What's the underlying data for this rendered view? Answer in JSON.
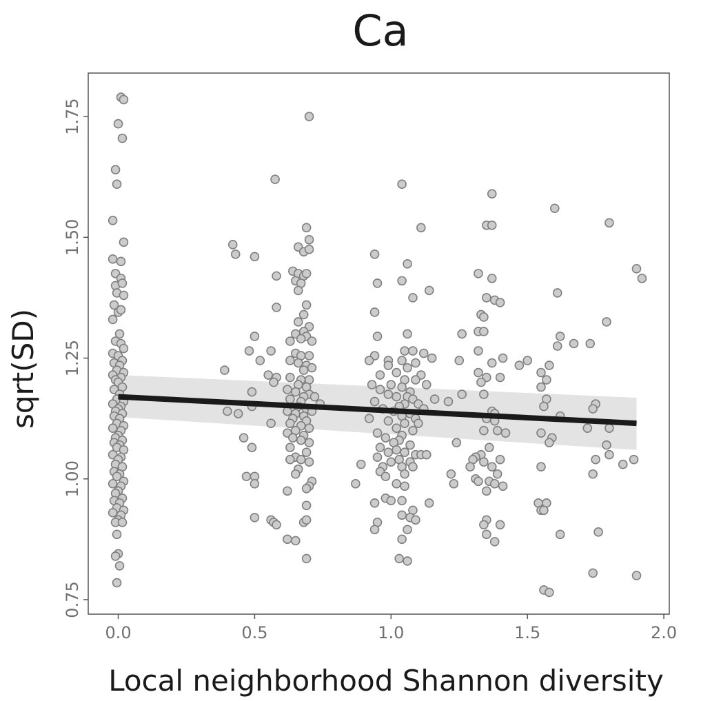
{
  "chart_data": {
    "type": "scatter",
    "title": "Ca",
    "xlabel": "Local neighborhood Shannon diversity",
    "ylabel": "sqrt(SD)",
    "xlim": [
      -0.11,
      2.02
    ],
    "ylim": [
      0.72,
      1.84
    ],
    "x_ticks": [
      0.0,
      0.5,
      1.0,
      1.5,
      2.0
    ],
    "x_tick_labels": [
      "0.0",
      "0.5",
      "1.0",
      "1.5",
      "2.0"
    ],
    "y_ticks": [
      0.75,
      1.0,
      1.25,
      1.5,
      1.75
    ],
    "y_tick_labels": [
      "0.75",
      "1.00",
      "1.25",
      "1.50",
      "1.75"
    ],
    "grid": false,
    "colors": {
      "point_fill": "#cccccc",
      "point_stroke": "#7f7f7f",
      "trend_line": "#1a1a1a",
      "confidence_band": "#e3e3e3",
      "panel_border": "#555555"
    },
    "trend_line": {
      "x": [
        0.0,
        1.9
      ],
      "y": [
        1.17,
        1.115
      ]
    },
    "confidence_band": {
      "x": [
        0.0,
        1.9
      ],
      "upper": [
        1.215,
        1.168
      ],
      "lower": [
        1.128,
        1.06
      ]
    },
    "points": [
      [
        0.01,
        1.79
      ],
      [
        0.02,
        1.785
      ],
      [
        0.0,
        1.735
      ],
      [
        0.015,
        1.705
      ],
      [
        -0.01,
        1.64
      ],
      [
        -0.005,
        1.61
      ],
      [
        -0.02,
        1.535
      ],
      [
        0.02,
        1.49
      ],
      [
        -0.02,
        1.455
      ],
      [
        0.01,
        1.45
      ],
      [
        -0.01,
        1.425
      ],
      [
        0.01,
        1.415
      ],
      [
        -0.01,
        1.4
      ],
      [
        0.015,
        1.405
      ],
      [
        -0.005,
        1.385
      ],
      [
        0.02,
        1.38
      ],
      [
        -0.015,
        1.36
      ],
      [
        0.0,
        1.345
      ],
      [
        0.01,
        1.35
      ],
      [
        -0.02,
        1.33
      ],
      [
        0.005,
        1.3
      ],
      [
        -0.01,
        1.285
      ],
      [
        0.01,
        1.28
      ],
      [
        0.02,
        1.27
      ],
      [
        -0.02,
        1.26
      ],
      [
        0.0,
        1.255
      ],
      [
        0.015,
        1.245
      ],
      [
        -0.015,
        1.24
      ],
      [
        0.005,
        1.235
      ],
      [
        -0.005,
        1.225
      ],
      [
        0.02,
        1.22
      ],
      [
        -0.02,
        1.215
      ],
      [
        0.01,
        1.21
      ],
      [
        -0.01,
        1.205
      ],
      [
        0.0,
        1.2
      ],
      [
        0.015,
        1.19
      ],
      [
        -0.015,
        1.185
      ],
      [
        0.005,
        1.175
      ],
      [
        -0.005,
        1.165
      ],
      [
        0.02,
        1.16
      ],
      [
        -0.02,
        1.155
      ],
      [
        0.01,
        1.15
      ],
      [
        0.0,
        1.145
      ],
      [
        -0.01,
        1.14
      ],
      [
        0.015,
        1.135
      ],
      [
        -0.015,
        1.13
      ],
      [
        0.005,
        1.125
      ],
      [
        -0.005,
        1.115
      ],
      [
        0.02,
        1.11
      ],
      [
        -0.02,
        1.105
      ],
      [
        0.01,
        1.1
      ],
      [
        0.0,
        1.09
      ],
      [
        -0.01,
        1.085
      ],
      [
        0.015,
        1.08
      ],
      [
        -0.015,
        1.075
      ],
      [
        0.005,
        1.07
      ],
      [
        -0.005,
        1.065
      ],
      [
        0.02,
        1.06
      ],
      [
        -0.02,
        1.05
      ],
      [
        0.01,
        1.045
      ],
      [
        0.0,
        1.04
      ],
      [
        -0.01,
        1.03
      ],
      [
        0.015,
        1.025
      ],
      [
        -0.015,
        1.015
      ],
      [
        0.005,
        1.01
      ],
      [
        -0.005,
        1.005
      ],
      [
        0.02,
        0.995
      ],
      [
        -0.02,
        0.99
      ],
      [
        0.01,
        0.985
      ],
      [
        0.0,
        0.975
      ],
      [
        -0.01,
        0.97
      ],
      [
        0.015,
        0.96
      ],
      [
        -0.015,
        0.955
      ],
      [
        0.005,
        0.95
      ],
      [
        -0.005,
        0.94
      ],
      [
        0.02,
        0.935
      ],
      [
        -0.02,
        0.93
      ],
      [
        0.01,
        0.925
      ],
      [
        0.0,
        0.915
      ],
      [
        -0.01,
        0.91
      ],
      [
        0.015,
        0.91
      ],
      [
        -0.005,
        0.885
      ],
      [
        0.0,
        0.845
      ],
      [
        -0.01,
        0.84
      ],
      [
        0.005,
        0.82
      ],
      [
        -0.005,
        0.785
      ],
      [
        0.7,
        1.75
      ],
      [
        0.575,
        1.62
      ],
      [
        0.42,
        1.485
      ],
      [
        0.43,
        1.465
      ],
      [
        0.5,
        1.46
      ],
      [
        0.58,
        1.42
      ],
      [
        0.69,
        1.52
      ],
      [
        0.7,
        1.495
      ],
      [
        0.66,
        1.48
      ],
      [
        0.68,
        1.47
      ],
      [
        0.7,
        1.475
      ],
      [
        0.64,
        1.43
      ],
      [
        0.66,
        1.425
      ],
      [
        0.68,
        1.42
      ],
      [
        0.69,
        1.425
      ],
      [
        0.65,
        1.41
      ],
      [
        0.67,
        1.405
      ],
      [
        0.66,
        1.39
      ],
      [
        0.69,
        1.36
      ],
      [
        0.58,
        1.355
      ],
      [
        0.68,
        1.34
      ],
      [
        0.66,
        1.325
      ],
      [
        0.7,
        1.315
      ],
      [
        0.68,
        1.305
      ],
      [
        0.65,
        1.3
      ],
      [
        0.5,
        1.295
      ],
      [
        0.69,
        1.295
      ],
      [
        0.67,
        1.29
      ],
      [
        0.63,
        1.285
      ],
      [
        0.71,
        1.285
      ],
      [
        0.48,
        1.265
      ],
      [
        0.56,
        1.265
      ],
      [
        0.65,
        1.26
      ],
      [
        0.67,
        1.255
      ],
      [
        0.7,
        1.255
      ],
      [
        0.52,
        1.245
      ],
      [
        0.63,
        1.245
      ],
      [
        0.66,
        1.24
      ],
      [
        0.69,
        1.235
      ],
      [
        0.68,
        1.225
      ],
      [
        0.71,
        1.23
      ],
      [
        0.39,
        1.225
      ],
      [
        0.55,
        1.215
      ],
      [
        0.58,
        1.21
      ],
      [
        0.63,
        1.21
      ],
      [
        0.67,
        1.205
      ],
      [
        0.7,
        1.205
      ],
      [
        0.57,
        1.2
      ],
      [
        0.66,
        1.195
      ],
      [
        0.69,
        1.19
      ],
      [
        0.62,
        1.185
      ],
      [
        0.65,
        1.18
      ],
      [
        0.49,
        1.18
      ],
      [
        0.7,
        1.175
      ],
      [
        0.68,
        1.17
      ],
      [
        0.72,
        1.17
      ],
      [
        0.63,
        1.165
      ],
      [
        0.67,
        1.16
      ],
      [
        0.74,
        1.155
      ],
      [
        0.49,
        1.15
      ],
      [
        0.66,
        1.15
      ],
      [
        0.69,
        1.145
      ],
      [
        0.62,
        1.14
      ],
      [
        0.71,
        1.14
      ],
      [
        0.4,
        1.14
      ],
      [
        0.44,
        1.135
      ],
      [
        0.65,
        1.135
      ],
      [
        0.68,
        1.13
      ],
      [
        0.64,
        1.125
      ],
      [
        0.69,
        1.12
      ],
      [
        0.56,
        1.115
      ],
      [
        0.63,
        1.115
      ],
      [
        0.67,
        1.11
      ],
      [
        0.7,
        1.105
      ],
      [
        0.65,
        1.1
      ],
      [
        0.62,
        1.095
      ],
      [
        0.68,
        1.09
      ],
      [
        0.46,
        1.085
      ],
      [
        0.64,
        1.085
      ],
      [
        0.67,
        1.08
      ],
      [
        0.7,
        1.075
      ],
      [
        0.63,
        1.065
      ],
      [
        0.49,
        1.065
      ],
      [
        0.69,
        1.055
      ],
      [
        0.65,
        1.045
      ],
      [
        0.67,
        1.04
      ],
      [
        0.63,
        1.04
      ],
      [
        0.7,
        1.035
      ],
      [
        0.66,
        1.02
      ],
      [
        0.65,
        1.01
      ],
      [
        0.47,
        1.005
      ],
      [
        0.5,
        1.005
      ],
      [
        0.71,
        0.995
      ],
      [
        0.5,
        0.99
      ],
      [
        0.7,
        0.985
      ],
      [
        0.69,
        0.98
      ],
      [
        0.62,
        0.975
      ],
      [
        0.69,
        0.945
      ],
      [
        0.5,
        0.92
      ],
      [
        0.56,
        0.915
      ],
      [
        0.57,
        0.91
      ],
      [
        0.58,
        0.905
      ],
      [
        0.68,
        0.91
      ],
      [
        0.69,
        0.915
      ],
      [
        0.62,
        0.875
      ],
      [
        0.65,
        0.872
      ],
      [
        0.69,
        0.835
      ],
      [
        1.04,
        1.61
      ],
      [
        1.11,
        1.52
      ],
      [
        0.94,
        1.465
      ],
      [
        1.06,
        1.445
      ],
      [
        0.95,
        1.405
      ],
      [
        1.04,
        1.41
      ],
      [
        1.14,
        1.39
      ],
      [
        1.08,
        1.375
      ],
      [
        0.94,
        1.345
      ],
      [
        1.06,
        1.3
      ],
      [
        0.95,
        1.295
      ],
      [
        0.94,
        1.255
      ],
      [
        1.05,
        1.265
      ],
      [
        1.08,
        1.265
      ],
      [
        1.12,
        1.26
      ],
      [
        0.99,
        1.245
      ],
      [
        1.04,
        1.245
      ],
      [
        1.15,
        1.25
      ],
      [
        0.92,
        1.245
      ],
      [
        0.99,
        1.235
      ],
      [
        1.09,
        1.24
      ],
      [
        1.06,
        1.23
      ],
      [
        0.96,
        1.215
      ],
      [
        1.02,
        1.22
      ],
      [
        1.11,
        1.215
      ],
      [
        1.05,
        1.205
      ],
      [
        0.93,
        1.195
      ],
      [
        1.09,
        1.205
      ],
      [
        1.0,
        1.195
      ],
      [
        1.13,
        1.195
      ],
      [
        0.96,
        1.185
      ],
      [
        1.04,
        1.19
      ],
      [
        1.07,
        1.18
      ],
      [
        0.99,
        1.175
      ],
      [
        1.02,
        1.17
      ],
      [
        1.06,
        1.17
      ],
      [
        1.08,
        1.165
      ],
      [
        0.94,
        1.16
      ],
      [
        1.16,
        1.165
      ],
      [
        1.05,
        1.155
      ],
      [
        1.1,
        1.155
      ],
      [
        1.03,
        1.15
      ],
      [
        1.12,
        1.145
      ],
      [
        0.97,
        1.145
      ],
      [
        1.01,
        1.14
      ],
      [
        1.07,
        1.135
      ],
      [
        1.04,
        1.13
      ],
      [
        1.09,
        1.125
      ],
      [
        0.92,
        1.125
      ],
      [
        0.99,
        1.12
      ],
      [
        1.05,
        1.115
      ],
      [
        1.1,
        1.115
      ],
      [
        1.02,
        1.105
      ],
      [
        1.08,
        1.1
      ],
      [
        0.95,
        1.095
      ],
      [
        1.04,
        1.09
      ],
      [
        0.98,
        1.085
      ],
      [
        1.03,
        1.08
      ],
      [
        1.01,
        1.075
      ],
      [
        1.07,
        1.07
      ],
      [
        0.96,
        1.065
      ],
      [
        1.02,
        1.06
      ],
      [
        1.05,
        1.055
      ],
      [
        0.99,
        1.055
      ],
      [
        1.09,
        1.05
      ],
      [
        1.11,
        1.05
      ],
      [
        1.13,
        1.05
      ],
      [
        0.95,
        1.045
      ],
      [
        1.03,
        1.04
      ],
      [
        1.0,
        1.035
      ],
      [
        1.07,
        1.035
      ],
      [
        0.89,
        1.03
      ],
      [
        0.97,
        1.025
      ],
      [
        1.04,
        1.025
      ],
      [
        1.08,
        1.025
      ],
      [
        0.96,
        1.015
      ],
      [
        0.98,
        1.005
      ],
      [
        1.05,
        1.01
      ],
      [
        0.87,
        0.99
      ],
      [
        1.02,
        0.99
      ],
      [
        1.05,
        0.985
      ],
      [
        0.98,
        0.96
      ],
      [
        1.0,
        0.955
      ],
      [
        0.94,
        0.95
      ],
      [
        1.04,
        0.955
      ],
      [
        1.08,
        0.935
      ],
      [
        1.14,
        0.95
      ],
      [
        1.04,
        0.925
      ],
      [
        1.07,
        0.92
      ],
      [
        1.09,
        0.915
      ],
      [
        0.95,
        0.91
      ],
      [
        0.94,
        0.895
      ],
      [
        1.06,
        0.895
      ],
      [
        1.04,
        0.875
      ],
      [
        1.03,
        0.835
      ],
      [
        1.06,
        0.83
      ],
      [
        1.37,
        1.59
      ],
      [
        1.6,
        1.56
      ],
      [
        1.8,
        1.53
      ],
      [
        1.35,
        1.525
      ],
      [
        1.37,
        1.525
      ],
      [
        1.9,
        1.435
      ],
      [
        1.92,
        1.415
      ],
      [
        1.32,
        1.425
      ],
      [
        1.37,
        1.415
      ],
      [
        1.61,
        1.385
      ],
      [
        1.35,
        1.375
      ],
      [
        1.38,
        1.37
      ],
      [
        1.4,
        1.365
      ],
      [
        1.33,
        1.34
      ],
      [
        1.34,
        1.335
      ],
      [
        1.79,
        1.325
      ],
      [
        1.32,
        1.305
      ],
      [
        1.34,
        1.305
      ],
      [
        1.26,
        1.3
      ],
      [
        1.62,
        1.295
      ],
      [
        1.67,
        1.28
      ],
      [
        1.73,
        1.28
      ],
      [
        1.61,
        1.275
      ],
      [
        1.32,
        1.265
      ],
      [
        1.41,
        1.25
      ],
      [
        1.5,
        1.245
      ],
      [
        1.25,
        1.245
      ],
      [
        1.37,
        1.24
      ],
      [
        1.47,
        1.235
      ],
      [
        1.58,
        1.235
      ],
      [
        1.32,
        1.22
      ],
      [
        1.55,
        1.22
      ],
      [
        1.35,
        1.21
      ],
      [
        1.4,
        1.21
      ],
      [
        1.57,
        1.205
      ],
      [
        1.33,
        1.2
      ],
      [
        1.55,
        1.19
      ],
      [
        1.26,
        1.175
      ],
      [
        1.34,
        1.175
      ],
      [
        1.57,
        1.165
      ],
      [
        1.21,
        1.16
      ],
      [
        1.75,
        1.155
      ],
      [
        1.56,
        1.15
      ],
      [
        1.74,
        1.145
      ],
      [
        1.37,
        1.14
      ],
      [
        1.38,
        1.135
      ],
      [
        1.62,
        1.13
      ],
      [
        1.35,
        1.125
      ],
      [
        1.38,
        1.12
      ],
      [
        1.72,
        1.105
      ],
      [
        1.8,
        1.105
      ],
      [
        1.34,
        1.1
      ],
      [
        1.39,
        1.1
      ],
      [
        1.42,
        1.095
      ],
      [
        1.55,
        1.095
      ],
      [
        1.59,
        1.085
      ],
      [
        1.58,
        1.075
      ],
      [
        1.24,
        1.075
      ],
      [
        1.79,
        1.07
      ],
      [
        1.36,
        1.065
      ],
      [
        1.8,
        1.05
      ],
      [
        1.33,
        1.05
      ],
      [
        1.31,
        1.045
      ],
      [
        1.3,
        1.04
      ],
      [
        1.4,
        1.04
      ],
      [
        1.75,
        1.04
      ],
      [
        1.34,
        1.035
      ],
      [
        1.85,
        1.03
      ],
      [
        1.89,
        1.04
      ],
      [
        1.29,
        1.025
      ],
      [
        1.37,
        1.025
      ],
      [
        1.55,
        1.025
      ],
      [
        1.22,
        1.01
      ],
      [
        1.39,
        1.01
      ],
      [
        1.74,
        1.01
      ],
      [
        1.31,
        1.0
      ],
      [
        1.32,
        0.995
      ],
      [
        1.36,
        0.995
      ],
      [
        1.38,
        0.99
      ],
      [
        1.41,
        0.985
      ],
      [
        1.23,
        0.99
      ],
      [
        1.35,
        0.975
      ],
      [
        1.54,
        0.95
      ],
      [
        1.57,
        0.95
      ],
      [
        1.55,
        0.935
      ],
      [
        1.56,
        0.935
      ],
      [
        1.35,
        0.915
      ],
      [
        1.34,
        0.905
      ],
      [
        1.4,
        0.905
      ],
      [
        1.76,
        0.89
      ],
      [
        1.35,
        0.885
      ],
      [
        1.62,
        0.885
      ],
      [
        1.38,
        0.87
      ],
      [
        1.74,
        0.805
      ],
      [
        1.9,
        0.8
      ],
      [
        1.56,
        0.77
      ],
      [
        1.58,
        0.765
      ]
    ]
  }
}
